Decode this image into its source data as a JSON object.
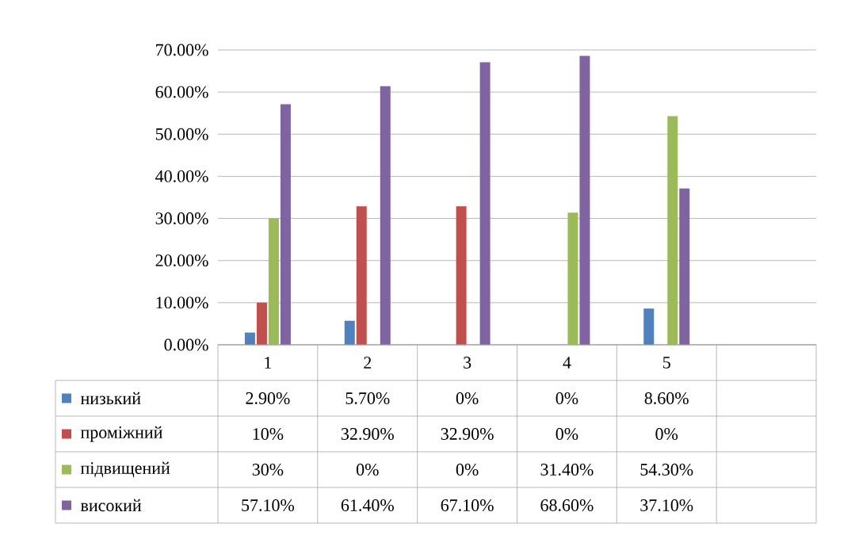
{
  "chart_data": {
    "type": "bar",
    "categories": [
      "1",
      "2",
      "3",
      "4",
      "5"
    ],
    "ylim": [
      0,
      70
    ],
    "yticks": [
      {
        "value": 0,
        "label": "0.00%"
      },
      {
        "value": 10,
        "label": "10.00%"
      },
      {
        "value": 20,
        "label": "20.00%"
      },
      {
        "value": 30,
        "label": "30.00%"
      },
      {
        "value": 40,
        "label": "40.00%"
      },
      {
        "value": 50,
        "label": "50.00%"
      },
      {
        "value": 60,
        "label": "60.00%"
      },
      {
        "value": 70,
        "label": "70.00%"
      }
    ],
    "grid": "y",
    "legend": "bottom",
    "series": [
      {
        "name": "низький",
        "color": "#4f81bd",
        "values": [
          2.9,
          5.7,
          0,
          0,
          8.6
        ],
        "value_labels": [
          "2.90%",
          "5.70%",
          "0%",
          "0%",
          "8.60%"
        ]
      },
      {
        "name": "проміжний",
        "color": "#c0504d",
        "values": [
          10,
          32.9,
          32.9,
          0,
          0
        ],
        "value_labels": [
          "10%",
          "32.90%",
          "32.90%",
          "0%",
          "0%"
        ]
      },
      {
        "name": "підвищений",
        "color": "#9bbb59",
        "values": [
          30,
          0,
          0,
          31.4,
          54.3
        ],
        "value_labels": [
          "30%",
          "0%",
          "0%",
          "31.40%",
          "54.30%"
        ]
      },
      {
        "name": "високий",
        "color": "#8064a2",
        "values": [
          57.1,
          61.4,
          67.1,
          68.6,
          37.1
        ],
        "value_labels": [
          "57.10%",
          "61.40%",
          "67.10%",
          "68.60%",
          "37.10%"
        ]
      }
    ]
  }
}
